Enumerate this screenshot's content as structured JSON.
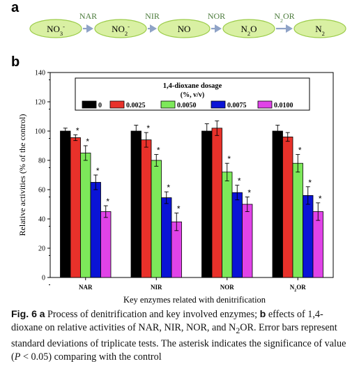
{
  "panel_a": {
    "label": "a",
    "nodes": [
      {
        "base": "NO",
        "sub": "3",
        "sup": "-"
      },
      {
        "base": "NO",
        "sub": "2",
        "sup": "-"
      },
      {
        "base": "NO",
        "sub": "",
        "sup": ""
      },
      {
        "base": "N",
        "sub": "2",
        "sup": "",
        "suffix": "O"
      },
      {
        "base": "N",
        "sub": "2",
        "sup": ""
      }
    ],
    "enzymes": [
      {
        "base": "NAR",
        "sub": "",
        "suffix": ""
      },
      {
        "base": "NIR",
        "sub": "",
        "suffix": ""
      },
      {
        "base": "NOR",
        "sub": "",
        "suffix": ""
      },
      {
        "base": "N",
        "sub": "2",
        "suffix": "OR"
      }
    ],
    "colors": {
      "node_fill": "#d9f0a3",
      "node_stroke": "#9ccc4a",
      "arrow": "#8fa3c7",
      "label": "#4a7a3a"
    }
  },
  "panel_b": {
    "label": "b"
  },
  "chart_data": {
    "type": "bar",
    "categories": [
      "NAR",
      "NIR",
      "NOR",
      "N2OR"
    ],
    "category_labels": [
      {
        "base": "NAR",
        "sub": "",
        "suffix": ""
      },
      {
        "base": "NIR",
        "sub": "",
        "suffix": ""
      },
      {
        "base": "NOR",
        "sub": "",
        "suffix": ""
      },
      {
        "base": "N",
        "sub": "2",
        "suffix": "OR"
      }
    ],
    "series": [
      {
        "name": "0",
        "color": "#000000",
        "values": [
          100,
          100,
          100,
          100
        ],
        "errors": [
          2,
          4,
          5,
          4
        ],
        "significant": [
          false,
          false,
          false,
          false
        ]
      },
      {
        "name": "0.0025",
        "color": "#e8312a",
        "values": [
          95.5,
          94,
          102,
          96
        ],
        "errors": [
          2,
          5,
          5,
          3
        ],
        "significant": [
          true,
          true,
          false,
          false
        ]
      },
      {
        "name": "0.0050",
        "color": "#7de85a",
        "values": [
          85,
          80,
          72,
          78
        ],
        "errors": [
          5,
          4,
          6,
          6
        ],
        "significant": [
          true,
          true,
          true,
          true
        ]
      },
      {
        "name": "0.0075",
        "color": "#0a14d6",
        "values": [
          65,
          54.5,
          58,
          56
        ],
        "errors": [
          5,
          4,
          5,
          6
        ],
        "significant": [
          true,
          true,
          true,
          true
        ]
      },
      {
        "name": "0.0100",
        "color": "#e043e8",
        "values": [
          45,
          38,
          50,
          45
        ],
        "errors": [
          4,
          6,
          5,
          6
        ],
        "significant": [
          true,
          true,
          true,
          true
        ]
      }
    ],
    "ylim": [
      0,
      140
    ],
    "yticks": [
      0,
      20,
      40,
      60,
      80,
      100,
      120,
      140
    ],
    "xlabel": "Key enzymes related with denitrification",
    "ylabel": "Relative activities (% of the control)",
    "legend_title_line1": "1,4-dioxane dosage",
    "legend_title_line2": "(%, v/v)",
    "significance_marker": "*"
  },
  "caption": {
    "fig_label": "Fig. 6",
    "seg1_bold": "a",
    "seg2": " Process of denitrification and key involved enzymes; ",
    "seg3_bold": "b",
    "seg4": " effects of 1,4-dioxane on relative activities of NAR, NIR, NOR, and N",
    "seg5_sub": "2",
    "seg6": "OR. Error bars represent standard deviations of triplicate tests. The asterisk indicates the significance of value (",
    "seg7_italic": "P",
    "seg8": " < 0.05) comparing with the control"
  }
}
